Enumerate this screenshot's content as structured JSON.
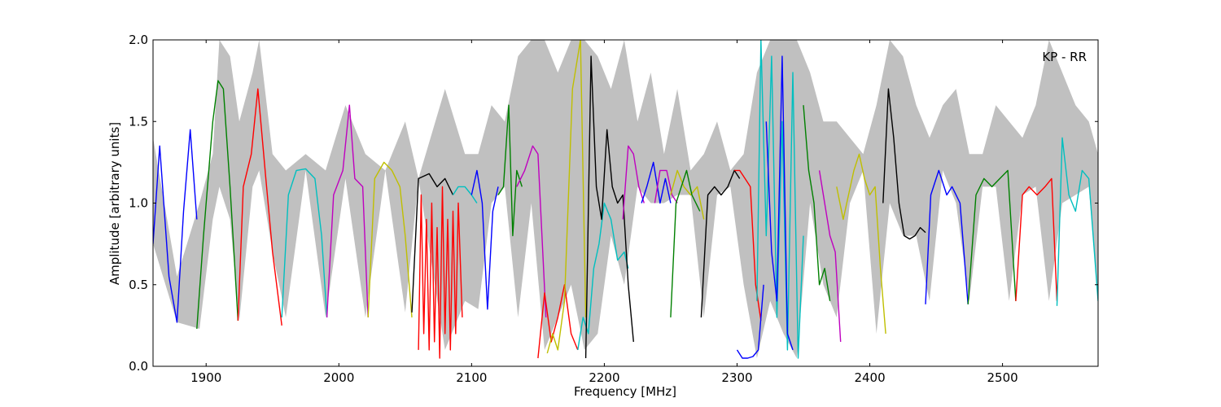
{
  "chart_data": {
    "type": "line",
    "title": "",
    "annotation": "KP - RR",
    "xlabel": "Frequency [MHz]",
    "ylabel": "Amplitude [arbitrary units]",
    "xlim": [
      1860,
      2572
    ],
    "ylim": [
      0.0,
      2.0
    ],
    "xticks": [
      1900,
      2000,
      2100,
      2200,
      2300,
      2400,
      2500
    ],
    "xtick_labels": [
      "1900",
      "2000",
      "2100",
      "2200",
      "2300",
      "2400",
      "2500"
    ],
    "yticks": [
      0.0,
      0.5,
      1.0,
      1.5,
      2.0
    ],
    "ytick_labels": [
      "0.0",
      "0.5",
      "1.0",
      "1.5",
      "2.0"
    ],
    "grid": false,
    "colors": {
      "background_envelope": "#c0c0c0",
      "blue": "#0000ff",
      "green": "#008000",
      "red": "#ff0000",
      "cyan": "#00bfbf",
      "magenta": "#bf00bf",
      "yellow": "#bfbf00",
      "black": "#000000"
    },
    "series": [
      {
        "color": "blue",
        "x": [
          1860,
          1865,
          1872,
          1878,
          1883,
          1888,
          1893
        ],
        "y": [
          0.75,
          1.35,
          0.55,
          0.27,
          0.95,
          1.45,
          0.9
        ]
      },
      {
        "color": "green",
        "x": [
          1893,
          1898,
          1905,
          1909,
          1913,
          1918,
          1924
        ],
        "y": [
          0.23,
          0.8,
          1.5,
          1.75,
          1.7,
          1.1,
          0.28
        ]
      },
      {
        "color": "red",
        "x": [
          1924,
          1928,
          1934,
          1939,
          1945,
          1950,
          1957
        ],
        "y": [
          0.28,
          1.1,
          1.3,
          1.7,
          1.15,
          0.7,
          0.25
        ]
      },
      {
        "color": "cyan",
        "x": [
          1957,
          1962,
          1968,
          1975,
          1982,
          1987,
          1991
        ],
        "y": [
          0.3,
          1.05,
          1.2,
          1.21,
          1.15,
          0.8,
          0.3
        ]
      },
      {
        "color": "magenta",
        "x": [
          1991,
          1996,
          2003,
          2008,
          2012,
          2018,
          2022
        ],
        "y": [
          0.3,
          1.05,
          1.2,
          1.6,
          1.15,
          1.1,
          0.3
        ]
      },
      {
        "color": "yellow",
        "x": [
          2022,
          2027,
          2034,
          2040,
          2046,
          2050,
          2055
        ],
        "y": [
          0.3,
          1.15,
          1.25,
          1.2,
          1.1,
          0.8,
          0.3
        ]
      },
      {
        "color": "black",
        "x": [
          2055,
          2060,
          2068,
          2074,
          2080,
          2086
        ],
        "y": [
          0.33,
          1.15,
          1.18,
          1.1,
          1.15,
          1.05
        ]
      },
      {
        "color": "red",
        "x": [
          2060,
          2062,
          2064,
          2066,
          2068,
          2070,
          2072,
          2074,
          2076,
          2078,
          2080,
          2082,
          2084,
          2086,
          2088,
          2090,
          2093
        ],
        "y": [
          0.1,
          1.05,
          0.2,
          0.9,
          0.1,
          1.0,
          0.15,
          0.85,
          0.05,
          1.1,
          0.2,
          0.9,
          0.1,
          0.95,
          0.2,
          1.0,
          0.3
        ]
      },
      {
        "color": "cyan",
        "x": [
          2086,
          2090,
          2095,
          2100,
          2104
        ],
        "y": [
          1.05,
          1.1,
          1.1,
          1.05,
          1.0
        ]
      },
      {
        "color": "blue",
        "x": [
          2100,
          2104,
          2108,
          2112,
          2116,
          2120
        ],
        "y": [
          1.05,
          1.2,
          1.0,
          0.35,
          0.95,
          1.1
        ]
      },
      {
        "color": "green",
        "x": [
          2120,
          2124,
          2128,
          2131,
          2134,
          2138
        ],
        "y": [
          1.05,
          1.1,
          1.6,
          0.8,
          1.2,
          1.1
        ]
      },
      {
        "color": "magenta",
        "x": [
          2134,
          2140,
          2146,
          2150,
          2153,
          2156
        ],
        "y": [
          1.1,
          1.2,
          1.35,
          1.3,
          0.8,
          0.3
        ]
      },
      {
        "color": "red",
        "x": [
          2150,
          2155,
          2160,
          2165,
          2170,
          2175,
          2180
        ],
        "y": [
          0.05,
          0.45,
          0.15,
          0.3,
          0.5,
          0.2,
          0.1
        ]
      },
      {
        "color": "yellow",
        "x": [
          2157,
          2161,
          2165,
          2170,
          2176,
          2182,
          2186
        ],
        "y": [
          0.08,
          0.2,
          0.1,
          0.4,
          1.7,
          2.0,
          0.3
        ]
      },
      {
        "color": "cyan",
        "x": [
          2180,
          2184,
          2188,
          2192,
          2196,
          2200,
          2205,
          2210,
          2215,
          2218
        ],
        "y": [
          0.1,
          0.3,
          0.2,
          0.6,
          0.75,
          1.0,
          0.9,
          0.65,
          0.7,
          0.6
        ]
      },
      {
        "color": "black",
        "x": [
          2186,
          2190,
          2194,
          2198,
          2202,
          2206,
          2210,
          2214,
          2218,
          2222
        ],
        "y": [
          0.05,
          1.9,
          1.1,
          0.9,
          1.45,
          1.1,
          1.0,
          1.05,
          0.5,
          0.15
        ]
      },
      {
        "color": "magenta",
        "x": [
          2214,
          2218,
          2222,
          2226,
          2230
        ],
        "y": [
          0.9,
          1.35,
          1.3,
          1.1,
          1.0
        ]
      },
      {
        "color": "blue",
        "x": [
          2228,
          2232,
          2237,
          2242,
          2246,
          2250
        ],
        "y": [
          1.0,
          1.1,
          1.25,
          1.0,
          1.15,
          1.0
        ]
      },
      {
        "color": "magenta",
        "x": [
          2238,
          2242,
          2247,
          2251,
          2255
        ],
        "y": [
          1.0,
          1.2,
          1.2,
          1.05,
          1.0
        ]
      },
      {
        "color": "yellow",
        "x": [
          2250,
          2255,
          2260,
          2265,
          2270,
          2275
        ],
        "y": [
          1.05,
          1.2,
          1.1,
          1.05,
          1.1,
          0.9
        ]
      },
      {
        "color": "green",
        "x": [
          2250,
          2254,
          2258,
          2262,
          2266,
          2272
        ],
        "y": [
          0.3,
          1.0,
          1.1,
          1.2,
          1.05,
          0.95
        ]
      },
      {
        "color": "black",
        "x": [
          2273,
          2278,
          2283,
          2288,
          2293,
          2298,
          2302
        ],
        "y": [
          0.3,
          1.05,
          1.1,
          1.05,
          1.1,
          1.2,
          1.15
        ]
      },
      {
        "color": "red",
        "x": [
          2298,
          2302,
          2306,
          2310,
          2314,
          2318
        ],
        "y": [
          1.2,
          1.2,
          1.15,
          1.1,
          0.5,
          0.28
        ]
      },
      {
        "color": "blue",
        "x": [
          2300,
          2304,
          2308,
          2312,
          2316,
          2320
        ],
        "y": [
          0.1,
          0.05,
          0.05,
          0.06,
          0.1,
          0.5
        ]
      },
      {
        "color": "cyan",
        "x": [
          2315,
          2318,
          2322,
          2326,
          2330,
          2334,
          2338,
          2342,
          2346,
          2350
        ],
        "y": [
          0.4,
          2.0,
          0.8,
          1.9,
          0.3,
          1.5,
          0.1,
          1.8,
          0.05,
          0.8
        ]
      },
      {
        "color": "blue",
        "x": [
          2322,
          2326,
          2330,
          2334,
          2338,
          2342
        ],
        "y": [
          1.5,
          0.7,
          0.4,
          1.9,
          0.2,
          0.1
        ]
      },
      {
        "color": "green",
        "x": [
          2350,
          2354,
          2358,
          2362,
          2366,
          2370
        ],
        "y": [
          1.6,
          1.2,
          1.0,
          0.5,
          0.6,
          0.4
        ]
      },
      {
        "color": "magenta",
        "x": [
          2362,
          2366,
          2370,
          2374,
          2378
        ],
        "y": [
          1.2,
          1.0,
          0.8,
          0.7,
          0.15
        ]
      },
      {
        "color": "yellow",
        "x": [
          2375,
          2380,
          2384,
          2388,
          2392,
          2396,
          2400,
          2404,
          2408,
          2412
        ],
        "y": [
          1.1,
          0.9,
          1.05,
          1.2,
          1.3,
          1.15,
          1.05,
          1.1,
          0.6,
          0.2
        ]
      },
      {
        "color": "black",
        "x": [
          2410,
          2414,
          2418,
          2422,
          2426,
          2430,
          2434,
          2438,
          2442
        ],
        "y": [
          1.0,
          1.7,
          1.4,
          1.0,
          0.8,
          0.78,
          0.8,
          0.85,
          0.82
        ]
      },
      {
        "color": "blue",
        "x": [
          2442,
          2446,
          2452,
          2458,
          2462,
          2468,
          2474
        ],
        "y": [
          0.38,
          1.05,
          1.2,
          1.05,
          1.1,
          1.0,
          0.38
        ]
      },
      {
        "color": "green",
        "x": [
          2474,
          2480,
          2486,
          2492,
          2498,
          2504,
          2510
        ],
        "y": [
          0.38,
          1.05,
          1.15,
          1.1,
          1.15,
          1.2,
          0.4
        ]
      },
      {
        "color": "red",
        "x": [
          2510,
          2515,
          2520,
          2526,
          2532,
          2537,
          2541
        ],
        "y": [
          0.4,
          1.05,
          1.1,
          1.05,
          1.1,
          1.15,
          0.4
        ]
      },
      {
        "color": "cyan",
        "x": [
          2541,
          2545,
          2550,
          2555,
          2560,
          2565,
          2572
        ],
        "y": [
          0.37,
          1.4,
          1.05,
          0.95,
          1.2,
          1.15,
          0.4
        ]
      }
    ],
    "envelope": {
      "x": [
        1860,
        1878,
        1895,
        1905,
        1910,
        1918,
        1925,
        1935,
        1940,
        1950,
        1960,
        1975,
        1990,
        2005,
        2020,
        2035,
        2050,
        2060,
        2080,
        2095,
        2105,
        2115,
        2125,
        2135,
        2145,
        2155,
        2165,
        2175,
        2185,
        2195,
        2205,
        2215,
        2225,
        2235,
        2245,
        2255,
        2265,
        2275,
        2285,
        2295,
        2305,
        2315,
        2325,
        2335,
        2345,
        2355,
        2365,
        2375,
        2385,
        2395,
        2405,
        2415,
        2425,
        2435,
        2445,
        2455,
        2465,
        2475,
        2485,
        2495,
        2505,
        2515,
        2525,
        2535,
        2545,
        2555,
        2565,
        2572
      ],
      "upper": [
        1.4,
        0.55,
        1.0,
        1.3,
        2.0,
        1.9,
        1.5,
        1.8,
        2.0,
        1.3,
        1.2,
        1.3,
        1.2,
        1.6,
        1.3,
        1.2,
        1.5,
        1.15,
        1.7,
        1.3,
        1.3,
        1.6,
        1.5,
        1.9,
        2.0,
        2.0,
        1.8,
        2.0,
        2.0,
        1.9,
        1.7,
        2.0,
        1.5,
        1.8,
        1.3,
        1.7,
        1.2,
        1.3,
        1.5,
        1.2,
        1.3,
        1.8,
        2.0,
        2.0,
        2.0,
        1.8,
        1.5,
        1.5,
        1.4,
        1.3,
        1.6,
        2.0,
        1.9,
        1.6,
        1.4,
        1.6,
        1.7,
        1.3,
        1.3,
        1.6,
        1.5,
        1.4,
        1.6,
        2.0,
        1.8,
        1.6,
        1.5,
        1.3
      ],
      "lower": [
        0.75,
        0.27,
        0.23,
        0.9,
        1.1,
        0.9,
        0.28,
        1.1,
        1.2,
        0.7,
        0.3,
        1.2,
        0.3,
        1.15,
        0.3,
        1.2,
        0.33,
        1.15,
        0.1,
        0.4,
        0.35,
        1.0,
        1.1,
        0.3,
        1.0,
        0.1,
        0.3,
        0.5,
        0.1,
        0.2,
        0.8,
        0.5,
        1.1,
        1.0,
        1.0,
        1.05,
        1.05,
        0.3,
        1.05,
        1.1,
        0.5,
        0.05,
        0.4,
        0.2,
        0.05,
        1.0,
        0.5,
        0.3,
        1.0,
        1.2,
        0.2,
        1.0,
        0.8,
        0.8,
        0.4,
        1.2,
        1.0,
        0.4,
        1.1,
        1.1,
        0.4,
        1.05,
        1.1,
        0.4,
        1.0,
        1.05,
        1.1,
        0.4
      ]
    }
  }
}
